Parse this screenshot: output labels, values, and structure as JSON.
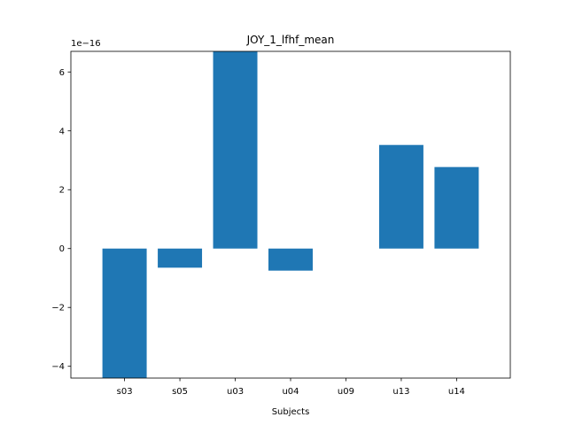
{
  "chart_data": {
    "type": "bar",
    "title": "JOY_1_lfhf_mean",
    "xlabel": "Subjects",
    "ylabel": "",
    "y_offset_label": "1e−16",
    "categories": [
      "s03",
      "s05",
      "u03",
      "u04",
      "u09",
      "u13",
      "u14"
    ],
    "values": [
      -4.4,
      -0.65,
      6.7,
      -0.75,
      0.0,
      3.52,
      2.77
    ],
    "value_scale": "1e-16",
    "ylim": [
      -4.4,
      6.7
    ],
    "yticks": [
      -4,
      -2,
      0,
      2,
      4,
      6
    ],
    "ytick_labels": [
      "−4",
      "−2",
      "0",
      "2",
      "4",
      "6"
    ],
    "grid": false,
    "bar_color": "#1f77b4"
  }
}
